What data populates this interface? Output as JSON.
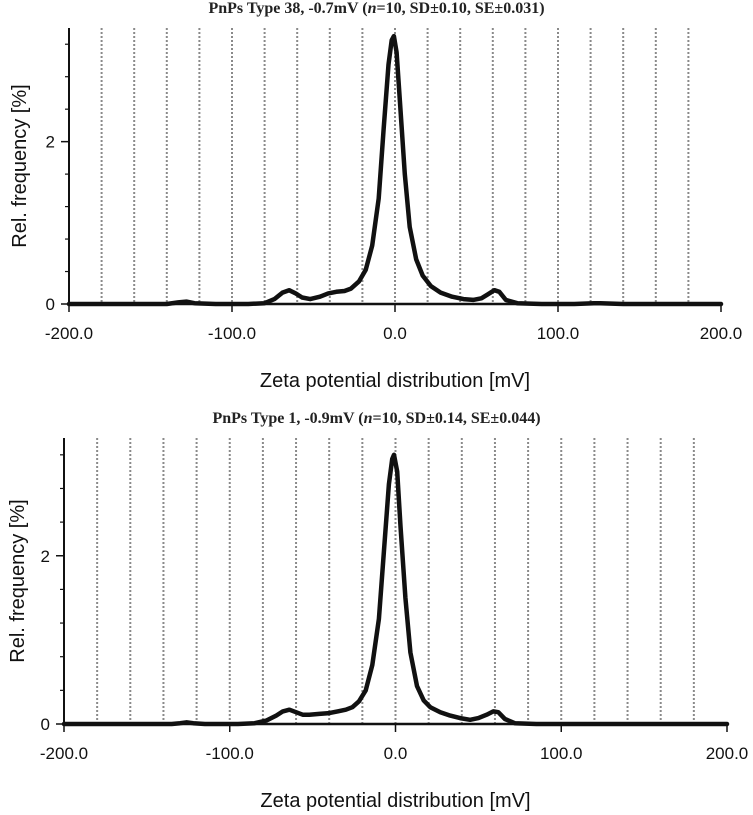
{
  "chart_data": [
    {
      "type": "line",
      "title": {
        "prefix": "PnPs Type 38, -0.7mV (",
        "n_symbol": "n",
        "suffix": "=10, SD±0.10, SE±0.031)"
      },
      "xlabel": "Zeta potential distribution [mV]",
      "ylabel": "Rel. frequency [%]",
      "xlim": [
        -200,
        200
      ],
      "ylim": [
        0,
        3.4
      ],
      "x_ticks": [
        -200,
        -100,
        0,
        100,
        200
      ],
      "x_tick_labels": [
        "-200.0",
        "-100.0",
        "0.0",
        "100.0",
        "200.0"
      ],
      "y_ticks": [
        0,
        2
      ],
      "y_tick_labels": [
        "0",
        "2"
      ],
      "gridlines_x": [
        -180,
        -160,
        -140,
        -120,
        -100,
        -80,
        -60,
        -40,
        -20,
        0,
        20,
        40,
        60,
        80,
        100,
        120,
        140,
        160,
        180
      ],
      "grid": "vertical dotted",
      "series": [
        {
          "name": "PnPs Type 38",
          "x": [
            -200,
            -140,
            -133,
            -128,
            -123,
            -110,
            -90,
            -80,
            -74,
            -69,
            -65,
            -61,
            -57,
            -52,
            -46,
            -41,
            -36,
            -31,
            -27,
            -22,
            -18,
            -14,
            -10,
            -7,
            -4,
            -2,
            -0.7,
            1,
            3,
            6,
            9,
            13,
            17,
            22,
            28,
            35,
            42,
            48,
            53,
            57,
            61,
            64,
            68,
            75,
            90,
            110,
            122,
            126,
            140,
            200
          ],
          "y": [
            0,
            0,
            0.02,
            0.03,
            0.01,
            0,
            0,
            0.01,
            0.06,
            0.14,
            0.17,
            0.13,
            0.08,
            0.06,
            0.09,
            0.13,
            0.15,
            0.16,
            0.19,
            0.28,
            0.42,
            0.72,
            1.3,
            2.15,
            2.95,
            3.25,
            3.3,
            3.1,
            2.5,
            1.6,
            0.95,
            0.55,
            0.35,
            0.22,
            0.14,
            0.09,
            0.06,
            0.05,
            0.07,
            0.12,
            0.17,
            0.15,
            0.05,
            0.01,
            0,
            0,
            0.01,
            0.01,
            0,
            0
          ]
        }
      ]
    },
    {
      "type": "line",
      "title": {
        "prefix": "PnPs Type 1, -0.9mV (",
        "n_symbol": "n",
        "suffix": "=10, SD±0.14, SE±0.044)"
      },
      "xlabel": "Zeta potential distribution [mV]",
      "ylabel": "Rel. frequency [%]",
      "xlim": [
        -200,
        200
      ],
      "ylim": [
        0,
        3.4
      ],
      "x_ticks": [
        -200,
        -100,
        0,
        100,
        200
      ],
      "x_tick_labels": [
        "-200.0",
        "-100.0",
        "0.0",
        "100.0",
        "200.0"
      ],
      "y_ticks": [
        0,
        2
      ],
      "y_tick_labels": [
        "0",
        "2"
      ],
      "gridlines_x": [
        -180,
        -160,
        -140,
        -120,
        -100,
        -80,
        -60,
        -40,
        -20,
        0,
        20,
        40,
        60,
        80,
        100,
        120,
        140,
        160,
        180
      ],
      "grid": "vertical dotted",
      "series": [
        {
          "name": "PnPs Type 1",
          "x": [
            -200,
            -135,
            -130,
            -126,
            -122,
            -115,
            -95,
            -85,
            -78,
            -72,
            -68,
            -64,
            -60,
            -56,
            -52,
            -46,
            -40,
            -35,
            -30,
            -26,
            -22,
            -18,
            -14,
            -10,
            -7,
            -4,
            -2,
            -0.9,
            1,
            3,
            6,
            9,
            13,
            17,
            21,
            27,
            33,
            39,
            45,
            50,
            55,
            59,
            62,
            66,
            72,
            85,
            110,
            200
          ],
          "y": [
            0,
            0,
            0.01,
            0.02,
            0.01,
            0,
            0,
            0.01,
            0.04,
            0.1,
            0.15,
            0.17,
            0.14,
            0.11,
            0.11,
            0.12,
            0.13,
            0.15,
            0.17,
            0.2,
            0.27,
            0.4,
            0.7,
            1.25,
            2.05,
            2.85,
            3.15,
            3.2,
            3.0,
            2.35,
            1.5,
            0.85,
            0.45,
            0.28,
            0.2,
            0.14,
            0.1,
            0.07,
            0.05,
            0.07,
            0.11,
            0.15,
            0.14,
            0.06,
            0.01,
            0,
            0,
            0
          ]
        }
      ]
    }
  ]
}
